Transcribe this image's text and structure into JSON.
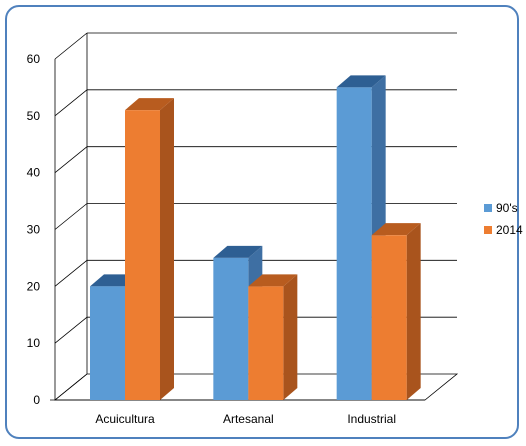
{
  "chart_data": {
    "type": "bar",
    "style": "3d-clustered-column",
    "categories": [
      "Acuicultura",
      "Artesanal",
      "Industrial"
    ],
    "series": [
      {
        "name": "90's",
        "values": [
          20,
          25,
          55
        ],
        "color": "#5b9bd5",
        "side_color": "#3e6fa3",
        "top_color": "#2e5f93"
      },
      {
        "name": "2014",
        "values": [
          51,
          20,
          29
        ],
        "color": "#ed7d31",
        "side_color": "#a9541d",
        "top_color": "#b85c1f"
      }
    ],
    "yticks": [
      "0",
      "10",
      "20",
      "30",
      "40",
      "50",
      "60"
    ],
    "ylim": [
      0,
      60
    ],
    "grid": true,
    "legend_position": "right",
    "border_color": "#4f81bd"
  }
}
